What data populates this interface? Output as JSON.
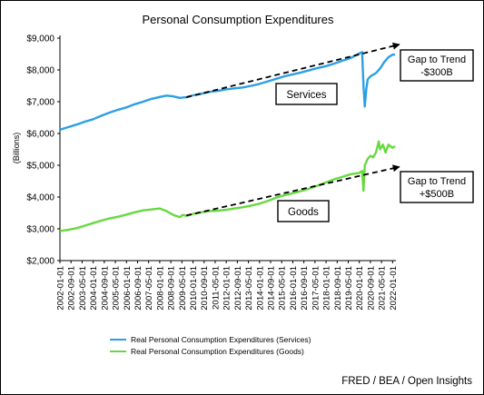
{
  "chart_data": {
    "type": "line",
    "title": "Personal Consumption Expenditures",
    "ylabel": "(Billions)",
    "xlabel": "",
    "ylim": [
      2000,
      9000
    ],
    "yticks": [
      2000,
      3000,
      4000,
      5000,
      6000,
      7000,
      8000,
      9000
    ],
    "ytick_labels": [
      "$2,000",
      "$3,000",
      "$4,000",
      "$5,000",
      "$6,000",
      "$7,000",
      "$8,000",
      "$9,000"
    ],
    "xticks": [
      "2002-01-01",
      "2002-09-01",
      "2003-05-01",
      "2004-01-01",
      "2004-09-01",
      "2005-05-01",
      "2006-01-01",
      "2006-09-01",
      "2007-05-01",
      "2008-01-01",
      "2008-09-01",
      "2009-05-01",
      "2010-01-01",
      "2010-09-01",
      "2011-05-01",
      "2012-01-01",
      "2012-09-01",
      "2013-05-01",
      "2014-01-01",
      "2014-09-01",
      "2015-05-01",
      "2016-01-01",
      "2016-09-01",
      "2017-05-01",
      "2018-01-01",
      "2018-09-01",
      "2019-05-01",
      "2020-01-01",
      "2020-09-01",
      "2021-05-01",
      "2022-01-01"
    ],
    "legend_position": "bottom",
    "grid": false,
    "series": [
      {
        "name": "Real Personal Consumption Expenditures (Services)",
        "color": "#2b9fe6",
        "x": [
          2002.0,
          2002.5,
          2003.0,
          2003.5,
          2004.0,
          2004.5,
          2005.0,
          2005.5,
          2006.0,
          2006.5,
          2007.0,
          2007.5,
          2008.0,
          2008.4,
          2008.8,
          2009.2,
          2009.6,
          2010.0,
          2010.5,
          2011.0,
          2011.5,
          2012.0,
          2012.5,
          2013.0,
          2013.5,
          2014.0,
          2014.5,
          2015.0,
          2015.5,
          2016.0,
          2016.5,
          2017.0,
          2017.5,
          2018.0,
          2018.5,
          2019.0,
          2019.5,
          2020.0,
          2020.17,
          2020.25,
          2020.33,
          2020.42,
          2020.5,
          2020.67,
          2020.83,
          2021.0,
          2021.25,
          2021.5,
          2021.75,
          2022.0,
          2022.15
        ],
        "values": [
          6120,
          6200,
          6280,
          6370,
          6450,
          6560,
          6660,
          6750,
          6820,
          6920,
          7000,
          7090,
          7150,
          7190,
          7170,
          7120,
          7140,
          7200,
          7250,
          7310,
          7340,
          7390,
          7420,
          7450,
          7500,
          7560,
          7640,
          7720,
          7800,
          7860,
          7920,
          7990,
          8060,
          8120,
          8200,
          8290,
          8380,
          8520,
          8560,
          7500,
          6850,
          7400,
          7700,
          7800,
          7850,
          7900,
          8050,
          8250,
          8400,
          8480,
          8480
        ]
      },
      {
        "name": "Real Personal Consumption Expenditures (Goods)",
        "color": "#66d940",
        "x": [
          2002.0,
          2002.5,
          2003.0,
          2003.5,
          2004.0,
          2004.5,
          2005.0,
          2005.5,
          2006.0,
          2006.5,
          2007.0,
          2007.5,
          2008.0,
          2008.4,
          2008.8,
          2009.2,
          2009.4,
          2009.6,
          2010.0,
          2010.5,
          2011.0,
          2011.5,
          2012.0,
          2012.5,
          2013.0,
          2013.5,
          2014.0,
          2014.5,
          2015.0,
          2015.5,
          2016.0,
          2016.5,
          2017.0,
          2017.5,
          2018.0,
          2018.5,
          2019.0,
          2019.5,
          2020.0,
          2020.17,
          2020.25,
          2020.33,
          2020.5,
          2020.67,
          2020.83,
          2021.0,
          2021.17,
          2021.25,
          2021.42,
          2021.58,
          2021.75,
          2022.0,
          2022.15
        ],
        "values": [
          2930,
          2970,
          3020,
          3100,
          3180,
          3260,
          3330,
          3380,
          3450,
          3520,
          3580,
          3610,
          3640,
          3560,
          3440,
          3370,
          3440,
          3410,
          3470,
          3520,
          3560,
          3570,
          3600,
          3640,
          3680,
          3730,
          3790,
          3880,
          3980,
          4060,
          4120,
          4190,
          4270,
          4360,
          4460,
          4560,
          4640,
          4720,
          4760,
          4820,
          4200,
          5000,
          5200,
          5300,
          5250,
          5400,
          5750,
          5500,
          5650,
          5400,
          5650,
          5550,
          5600
        ]
      }
    ],
    "trendlines": [
      {
        "x": [
          2009.6,
          2022.4
        ],
        "values": [
          7140,
          8800
        ]
      },
      {
        "x": [
          2009.6,
          2022.4
        ],
        "values": [
          3420,
          4950
        ]
      }
    ],
    "annotations": {
      "services_label": "Services",
      "goods_label": "Goods",
      "services_gap_line1": "Gap to Trend",
      "services_gap_line2": "-$300B",
      "goods_gap_line1": "Gap to Trend",
      "goods_gap_line2": "+$500B"
    },
    "source": "FRED / BEA / Open Insights"
  }
}
